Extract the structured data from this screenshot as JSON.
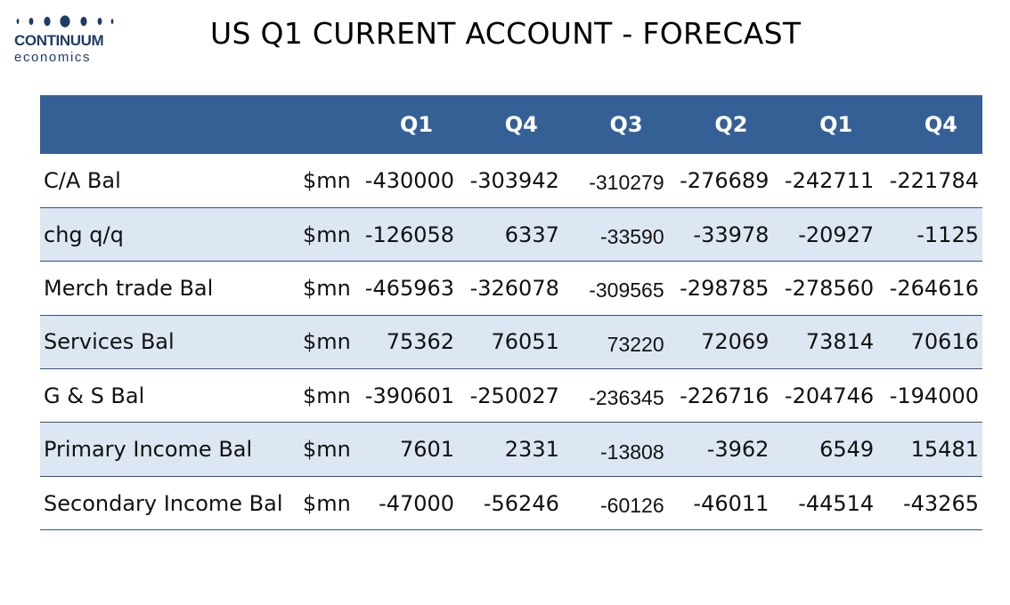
{
  "logo": {
    "name": "CONTINUUM",
    "sub": "economics",
    "color": "#1e3d66"
  },
  "title": "US Q1 CURRENT ACCOUNT - FORECAST",
  "colors": {
    "header_bg": "#356096",
    "row_shade": "#dde7f3",
    "rule": "#2f5486"
  },
  "table": {
    "header": [
      "",
      "",
      "Q1",
      "Q4",
      "Q3",
      "Q2",
      "Q1",
      "Q4"
    ],
    "rows": [
      {
        "label": "C/A Bal",
        "unit": "$mn",
        "values": [
          "-430000",
          "-303942",
          "-310279",
          "-276689",
          "-242711",
          "-221784"
        ]
      },
      {
        "label": "chg q/q",
        "unit": "$mn",
        "values": [
          "-126058",
          "6337",
          "-33590",
          "-33978",
          "-20927",
          "-1125"
        ]
      },
      {
        "label": "Merch trade Bal",
        "unit": "$mn",
        "values": [
          "-465963",
          "-326078",
          "-309565",
          "-298785",
          "-278560",
          "-264616"
        ]
      },
      {
        "label": "Services Bal",
        "unit": "$mn",
        "values": [
          "75362",
          "76051",
          "73220",
          "72069",
          "73814",
          "70616"
        ]
      },
      {
        "label": "G & S Bal",
        "unit": "$mn",
        "values": [
          "-390601",
          "-250027",
          "-236345",
          "-226716",
          "-204746",
          "-194000"
        ]
      },
      {
        "label": "Primary Income Bal",
        "unit": "$mn",
        "values": [
          "7601",
          "2331",
          "-13808",
          "-3962",
          "6549",
          "15481"
        ]
      },
      {
        "label": "Secondary Income Bal",
        "unit": "$mn",
        "values": [
          "-47000",
          "-56246",
          "-60126",
          "-46011",
          "-44514",
          "-43265"
        ]
      }
    ]
  }
}
